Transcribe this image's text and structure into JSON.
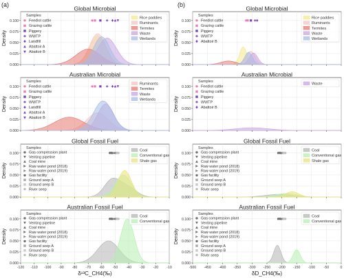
{
  "figure": {
    "col_labels": [
      "(a)",
      "(b)"
    ],
    "col_xlabels": [
      "δ¹³C_CH4(‰)",
      "δD_CH4(‰)"
    ],
    "ylabel": "Density"
  },
  "colors": {
    "Rice paddies": "#f6e98c",
    "Ruminants": "#f4c6c6",
    "Termites": "#e8796f",
    "Waste": "#c9a6e0",
    "Wetlands": "#a7bde6",
    "Coal": "#b5b5b5",
    "Conventional gas": "#b7f0b1",
    "Shale gas": "#ece27a",
    "marker_pink": "#f07bb2",
    "marker_purple": "#7a3fc2",
    "marker_gray": "#6e6e6e"
  },
  "legends": {
    "samples_title": "Samples",
    "microbial_samples": [
      {
        "label": "Feedlot cattle",
        "shape": "circle",
        "color": "#f07bb2"
      },
      {
        "label": "Grazing cattle",
        "shape": "square",
        "color": "#f07bb2"
      },
      {
        "label": "Piggery",
        "shape": "square",
        "color": "#7a3fc2"
      },
      {
        "label": "WWTP",
        "shape": "plus",
        "color": "#7a3fc2"
      },
      {
        "label": "Landfill",
        "shape": "diamond",
        "color": "#7a3fc2"
      },
      {
        "label": "Abattoir A",
        "shape": "tri-up",
        "color": "#7a3fc2"
      },
      {
        "label": "Abattoir B",
        "shape": "tri-down",
        "color": "#7a3fc2"
      }
    ],
    "microbial_samples_b": [
      {
        "label": "Feedlot cattle",
        "shape": "circle",
        "color": "#f07bb2"
      },
      {
        "label": "Grazing cattle",
        "shape": "square",
        "color": "#f07bb2"
      },
      {
        "label": "Piggery",
        "shape": "square",
        "color": "#7a3fc2"
      },
      {
        "label": "WWTP",
        "shape": "plus",
        "color": "#7a3fc2"
      },
      {
        "label": "Abattoir B",
        "shape": "diamond",
        "color": "#7a3fc2"
      }
    ],
    "fossil_samples": [
      {
        "label": "Gas compression plant",
        "shape": "circle",
        "color": "#6e6e6e"
      },
      {
        "label": "Venting pipeline",
        "shape": "tri-down",
        "color": "#6e6e6e"
      },
      {
        "label": "Coal mine",
        "shape": "tri-up",
        "color": "#6e6e6e"
      },
      {
        "label": "Raw water pond (2018)",
        "shape": "tri-right",
        "color": "#6e6e6e"
      },
      {
        "label": "Raw water pond (2019)",
        "shape": "tri-right",
        "color": "#8a8a8a"
      },
      {
        "label": "Gas facility",
        "shape": "circle",
        "color": "#6e6e6e"
      },
      {
        "label": "Ground seep A",
        "shape": "square",
        "color": "#a5a5a5"
      },
      {
        "label": "Ground seep B",
        "shape": "square",
        "color": "#c8c8c8"
      },
      {
        "label": "River seep",
        "shape": "circle",
        "color": "#bdbdbd"
      }
    ],
    "sources_global_microbial": [
      "Rice paddies",
      "Ruminants",
      "Termites",
      "Waste",
      "Wetlands"
    ],
    "sources_australian_microbial_a": [
      "Ruminants",
      "Termites",
      "Waste",
      "Wetlands"
    ],
    "sources_australian_microbial_b": [
      "Waste"
    ],
    "sources_global_fossil": [
      "Coal",
      "Conventional gas",
      "Shale gas"
    ],
    "sources_australian_fossil": [
      "Coal",
      "Conventional gas"
    ]
  },
  "chart_data": [
    {
      "type": "area",
      "panel": "(a) Global Microbial",
      "title": "Global Microbial",
      "xlim": [
        -120,
        -10
      ],
      "ylim": [
        0,
        0.12
      ],
      "yticks": [
        0.0,
        0.025,
        0.05,
        0.075,
        0.1
      ],
      "series": [
        {
          "name": "Rice paddies",
          "peaks": [
            [
              -63,
              0.065,
              6
            ]
          ]
        },
        {
          "name": "Ruminants",
          "peaks": [
            [
              -63,
              0.07,
              6
            ]
          ]
        },
        {
          "name": "Termites",
          "peaks": [
            [
              -70,
              0.035,
              9
            ]
          ]
        },
        {
          "name": "Waste",
          "peaks": [
            [
              -56,
              0.06,
              7
            ]
          ]
        },
        {
          "name": "Wetlands",
          "peaks": [
            [
              -60,
              0.063,
              6
            ]
          ]
        }
      ],
      "markers_y": 0.1,
      "markers": [
        {
          "x": -67,
          "shape": "circle",
          "color": "#f07bb2"
        },
        {
          "x": -65,
          "shape": "square",
          "color": "#f07bb2"
        },
        {
          "x": -61,
          "shape": "square",
          "color": "#7a3fc2"
        },
        {
          "x": -56,
          "shape": "plus",
          "color": "#7a3fc2"
        },
        {
          "x": -52,
          "shape": "diamond",
          "color": "#7a3fc2"
        },
        {
          "x": -50,
          "shape": "tri-up",
          "color": "#7a3fc2"
        },
        {
          "x": -48,
          "shape": "tri-down",
          "color": "#7a3fc2"
        }
      ]
    },
    {
      "type": "area",
      "panel": "(b) Global Microbial",
      "title": "Global Microbial",
      "xlim": [
        -500,
        0
      ],
      "ylim": [
        0,
        0.12
      ],
      "yticks": [
        0.0,
        0.025,
        0.05,
        0.075,
        0.1
      ],
      "series": [
        {
          "name": "Rice paddies",
          "peaks": [
            [
              -330,
              0.04,
              12
            ]
          ]
        },
        {
          "name": "Ruminants",
          "peaks": [
            [
              -305,
              0.03,
              15
            ]
          ]
        },
        {
          "name": "Termites",
          "peaks": [
            [
              -380,
              0.008,
              25
            ]
          ]
        },
        {
          "name": "Waste",
          "peaks": [
            [
              -295,
              0.026,
              14
            ]
          ]
        },
        {
          "name": "Wetlands",
          "peaks": [
            [
              -312,
              0.028,
              13
            ]
          ]
        }
      ],
      "markers_y": 0.1,
      "markers": [
        {
          "x": -320,
          "shape": "circle",
          "color": "#f07bb2"
        },
        {
          "x": -315,
          "shape": "square",
          "color": "#f07bb2"
        },
        {
          "x": -304,
          "shape": "square",
          "color": "#7a3fc2"
        },
        {
          "x": -290,
          "shape": "plus",
          "color": "#7a3fc2"
        },
        {
          "x": -283,
          "shape": "diamond",
          "color": "#7a3fc2"
        }
      ]
    },
    {
      "type": "area",
      "panel": "(a) Australian Microbial",
      "title": "Australian Microbial",
      "xlim": [
        -120,
        -10
      ],
      "ylim": [
        0,
        0.12
      ],
      "yticks": [
        0.0,
        0.025,
        0.05,
        0.075,
        0.1
      ],
      "series": [
        {
          "name": "Ruminants",
          "peaks": [
            [
              -63,
              0.04,
              8
            ]
          ]
        },
        {
          "name": "Termites",
          "peaks": [
            [
              -84,
              0.03,
              11
            ]
          ]
        },
        {
          "name": "Waste",
          "peaks": [
            [
              -57,
              0.06,
              6
            ]
          ]
        },
        {
          "name": "Wetlands",
          "peaks": [
            [
              -59,
              0.067,
              7
            ]
          ]
        }
      ],
      "markers_y": 0.1,
      "markers": [
        {
          "x": -67,
          "shape": "circle",
          "color": "#f07bb2"
        },
        {
          "x": -65,
          "shape": "square",
          "color": "#f07bb2"
        },
        {
          "x": -61,
          "shape": "square",
          "color": "#7a3fc2"
        },
        {
          "x": -56,
          "shape": "plus",
          "color": "#7a3fc2"
        },
        {
          "x": -52,
          "shape": "diamond",
          "color": "#7a3fc2"
        },
        {
          "x": -50,
          "shape": "tri-up",
          "color": "#7a3fc2"
        },
        {
          "x": -48,
          "shape": "tri-down",
          "color": "#7a3fc2"
        }
      ]
    },
    {
      "type": "area",
      "panel": "(b) Australian Microbial",
      "title": "Australian Microbial",
      "xlim": [
        -500,
        0
      ],
      "ylim": [
        0,
        0.12
      ],
      "yticks": [
        0.0,
        0.025,
        0.05,
        0.075,
        0.1
      ],
      "series": [
        {
          "name": "Waste",
          "peaks": [
            [
              -300,
              0.006,
              55
            ]
          ]
        }
      ],
      "markers_y": 0.1,
      "markers": []
    },
    {
      "type": "area",
      "panel": "(a) Global Fossil Fuel",
      "title": "Global Fossil Fuel",
      "xlim": [
        -120,
        -10
      ],
      "ylim": [
        0,
        0.12
      ],
      "yticks": [
        0.0,
        0.025,
        0.05,
        0.075,
        0.1
      ],
      "series": [
        {
          "name": "Coal",
          "peaks": [
            [
              -52,
              0.04,
              6
            ],
            [
              -40,
              0.02,
              6
            ]
          ]
        },
        {
          "name": "Conventional gas",
          "peaks": [
            [
              -44,
              0.05,
              6
            ]
          ]
        },
        {
          "name": "Shale gas",
          "peaks": [
            [
              -43,
              0.06,
              5
            ]
          ]
        }
      ],
      "markers_y": 0.1,
      "markers": [
        {
          "x": -54,
          "shape": "circle",
          "color": "#6e6e6e"
        },
        {
          "x": -53.2,
          "shape": "tri-down",
          "color": "#6e6e6e"
        },
        {
          "x": -52.4,
          "shape": "tri-up",
          "color": "#6e6e6e"
        },
        {
          "x": -51.6,
          "shape": "tri-right",
          "color": "#6e6e6e"
        },
        {
          "x": -50.8,
          "shape": "tri-right",
          "color": "#8a8a8a"
        },
        {
          "x": -50,
          "shape": "circle",
          "color": "#6e6e6e"
        },
        {
          "x": -49.2,
          "shape": "square",
          "color": "#a5a5a5"
        },
        {
          "x": -48.4,
          "shape": "square",
          "color": "#c8c8c8"
        },
        {
          "x": -47.6,
          "shape": "circle",
          "color": "#bdbdbd"
        }
      ]
    },
    {
      "type": "area",
      "panel": "(b) Global Fossil Fuel",
      "title": "Global Fossil Fuel",
      "xlim": [
        -500,
        0
      ],
      "ylim": [
        0,
        0.12
      ],
      "yticks": [
        0.0,
        0.025,
        0.05,
        0.075,
        0.1
      ],
      "series": [
        {
          "name": "Coal",
          "peaks": [
            [
              -210,
              0.006,
              45
            ]
          ]
        },
        {
          "name": "Conventional gas",
          "peaks": [
            [
              -185,
              0.008,
              35
            ]
          ]
        },
        {
          "name": "Shale gas",
          "peaks": [
            [
              -165,
              0.012,
              22
            ]
          ]
        }
      ],
      "markers_y": 0.1,
      "markers": [
        {
          "x": -212,
          "shape": "circle",
          "color": "#6e6e6e"
        },
        {
          "x": -208,
          "shape": "tri-down",
          "color": "#6e6e6e"
        },
        {
          "x": -204,
          "shape": "tri-up",
          "color": "#6e6e6e"
        },
        {
          "x": -200,
          "shape": "tri-right",
          "color": "#6e6e6e"
        },
        {
          "x": -196,
          "shape": "square",
          "color": "#a5a5a5"
        },
        {
          "x": -192,
          "shape": "square",
          "color": "#c8c8c8"
        },
        {
          "x": -188,
          "shape": "circle",
          "color": "#bdbdbd"
        }
      ]
    },
    {
      "type": "area",
      "panel": "(a) Australian Fossil Fuel",
      "title": "Australian Fossil Fuel",
      "xlim": [
        -120,
        -10
      ],
      "ylim": [
        0,
        0.12
      ],
      "yticks": [
        0.0,
        0.025,
        0.05,
        0.075,
        0.1
      ],
      "series": [
        {
          "name": "Coal",
          "peaks": [
            [
              -55,
              0.05,
              8
            ]
          ]
        },
        {
          "name": "Conventional gas",
          "peaks": [
            [
              -41,
              0.1,
              5
            ]
          ]
        }
      ],
      "markers_y": 0.1,
      "markers": [
        {
          "x": -54,
          "shape": "circle",
          "color": "#6e6e6e"
        },
        {
          "x": -53.2,
          "shape": "tri-down",
          "color": "#6e6e6e"
        },
        {
          "x": -52.4,
          "shape": "tri-up",
          "color": "#6e6e6e"
        },
        {
          "x": -51.6,
          "shape": "tri-right",
          "color": "#6e6e6e"
        },
        {
          "x": -50.8,
          "shape": "tri-right",
          "color": "#8a8a8a"
        },
        {
          "x": -50,
          "shape": "circle",
          "color": "#6e6e6e"
        },
        {
          "x": -49.2,
          "shape": "square",
          "color": "#a5a5a5"
        },
        {
          "x": -48.4,
          "shape": "square",
          "color": "#c8c8c8"
        },
        {
          "x": -47.6,
          "shape": "circle",
          "color": "#bdbdbd"
        }
      ]
    },
    {
      "type": "area",
      "panel": "(b) Australian Fossil Fuel",
      "title": "Australian Fossil Fuel",
      "xlim": [
        -500,
        0
      ],
      "ylim": [
        0,
        0.12
      ],
      "yticks": [
        0.0,
        0.025,
        0.05,
        0.075,
        0.1
      ],
      "series": [
        {
          "name": "Coal",
          "peaks": [
            [
              -215,
              0.04,
              12
            ]
          ]
        },
        {
          "name": "Conventional gas",
          "peaks": [
            [
              -150,
              0.03,
              12
            ]
          ]
        }
      ],
      "markers_y": 0.1,
      "markers": [
        {
          "x": -212,
          "shape": "circle",
          "color": "#6e6e6e"
        },
        {
          "x": -208,
          "shape": "tri-down",
          "color": "#6e6e6e"
        },
        {
          "x": -204,
          "shape": "tri-up",
          "color": "#6e6e6e"
        },
        {
          "x": -200,
          "shape": "tri-right",
          "color": "#6e6e6e"
        },
        {
          "x": -196,
          "shape": "square",
          "color": "#a5a5a5"
        },
        {
          "x": -192,
          "shape": "square",
          "color": "#c8c8c8"
        },
        {
          "x": -188,
          "shape": "circle",
          "color": "#bdbdbd"
        }
      ]
    }
  ],
  "axes": {
    "a_xticks": [
      -120,
      -110,
      -100,
      -90,
      -80,
      -70,
      -60,
      -50,
      -40,
      -30,
      -20,
      -10
    ],
    "b_xticks": [
      -500,
      -450,
      -400,
      -350,
      -300,
      -250,
      -200,
      -150,
      -100,
      -50,
      0
    ]
  }
}
